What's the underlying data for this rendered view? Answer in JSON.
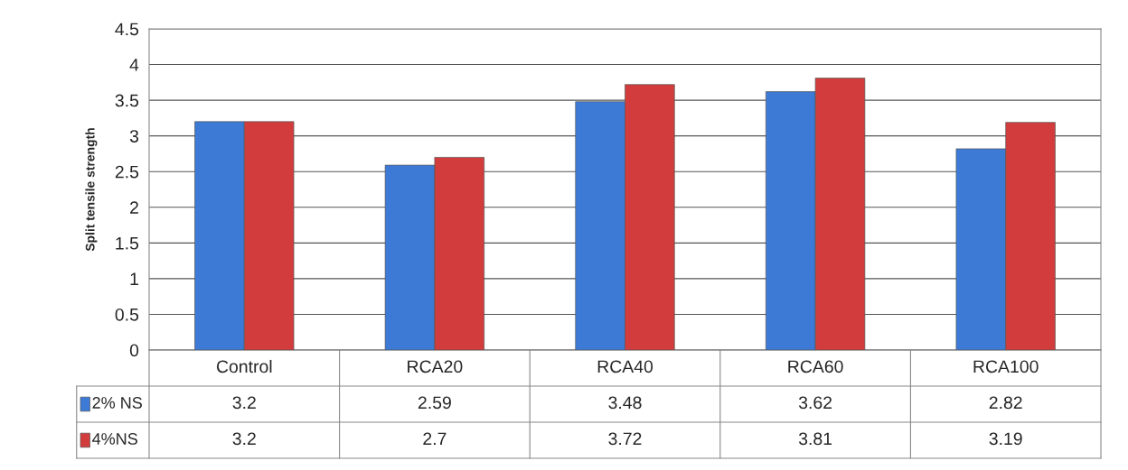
{
  "chart_data": {
    "type": "bar",
    "ylabel": "Split tensile strength",
    "categories": [
      "Control",
      "RCA20",
      "RCA40",
      "RCA60",
      "RCA100"
    ],
    "series": [
      {
        "name": "2% NS",
        "color": "#3c7ad6",
        "values": [
          3.2,
          2.59,
          3.48,
          3.62,
          2.82
        ]
      },
      {
        "name": "4%NS",
        "color": "#d23c3c",
        "values": [
          3.2,
          2.7,
          3.72,
          3.81,
          3.19
        ]
      }
    ],
    "ylim": [
      0,
      4.5
    ],
    "yticks": [
      0,
      0.5,
      1,
      1.5,
      2,
      2.5,
      3,
      3.5,
      4,
      4.5
    ],
    "grid": "y",
    "legend": "bottom",
    "data_labels": true
  }
}
